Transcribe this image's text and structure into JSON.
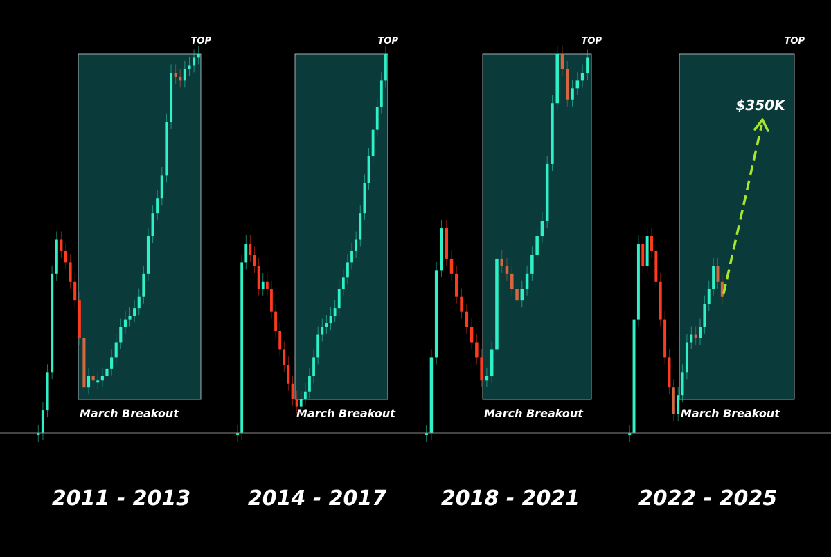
{
  "colors": {
    "background": "#000000",
    "up_candle": "#2ff0c6",
    "down_candle_pre": "#ff3b1f",
    "down_candle_in": "#d4673f",
    "highlight_box": "#0a3a3a",
    "highlight_border": "#c8d8d8",
    "baseline": "#8a8a8a",
    "projection_arrow": "#a8e62c"
  },
  "chart_data": [
    {
      "type": "candlestick",
      "cycle_label": "2011 - 2013",
      "box_label": "March Breakout",
      "top_label": "TOP",
      "values": [
        0.0,
        0.06,
        0.16,
        0.42,
        0.51,
        0.48,
        0.45,
        0.4,
        0.35,
        0.25,
        0.12,
        0.15,
        0.14,
        0.14,
        0.15,
        0.17,
        0.2,
        0.24,
        0.28,
        0.3,
        0.31,
        0.33,
        0.36,
        0.42,
        0.52,
        0.58,
        0.62,
        0.68,
        0.82,
        0.95,
        0.94,
        0.93,
        0.96,
        0.97,
        0.99,
        1.0
      ],
      "box_start_index": 10
    },
    {
      "type": "candlestick",
      "cycle_label": "2014 - 2017",
      "box_label": "March Breakout",
      "top_label": "TOP",
      "values": [
        0.0,
        0.45,
        0.5,
        0.47,
        0.44,
        0.38,
        0.4,
        0.38,
        0.32,
        0.27,
        0.22,
        0.18,
        0.13,
        0.09,
        0.07,
        0.09,
        0.11,
        0.15,
        0.2,
        0.26,
        0.28,
        0.29,
        0.31,
        0.33,
        0.38,
        0.41,
        0.45,
        0.48,
        0.51,
        0.58,
        0.66,
        0.73,
        0.8,
        0.86,
        0.93,
        1.0
      ],
      "box_start_index": 15
    },
    {
      "type": "candlestick",
      "cycle_label": "2018 - 2021",
      "box_label": "March Breakout",
      "top_label": "TOP",
      "values": [
        0.0,
        0.2,
        0.43,
        0.54,
        0.46,
        0.42,
        0.36,
        0.32,
        0.28,
        0.24,
        0.2,
        0.14,
        0.15,
        0.22,
        0.46,
        0.44,
        0.42,
        0.38,
        0.35,
        0.38,
        0.42,
        0.47,
        0.52,
        0.56,
        0.71,
        0.87,
        1.0,
        0.96,
        0.88,
        0.91,
        0.93,
        0.95,
        0.99
      ],
      "box_start_index": 12
    },
    {
      "type": "candlestick",
      "cycle_label": "2022 - 2025",
      "box_label": "March Breakout",
      "top_label": "TOP",
      "target_label": "$350K",
      "values": [
        0.0,
        0.3,
        0.5,
        0.44,
        0.52,
        0.48,
        0.4,
        0.3,
        0.2,
        0.12,
        0.05,
        0.1,
        0.16,
        0.24,
        0.26,
        0.25,
        0.28,
        0.34,
        0.38,
        0.44,
        0.4,
        0.36
      ],
      "box_start_index": 10
    }
  ]
}
